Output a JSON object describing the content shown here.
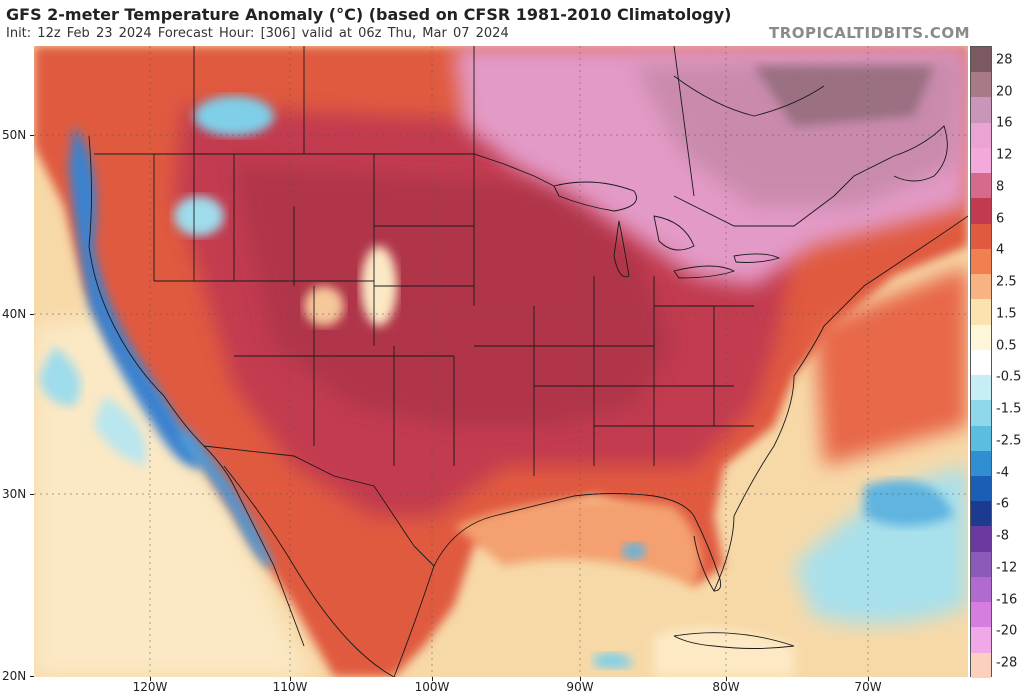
{
  "header": {
    "title": "GFS 2-meter Temperature Anomaly (°C) (based on CFSR 1981-2010 Climatology)",
    "subtitle": "Init: 12z Feb 23 2024   Forecast Hour: [306]   valid at 06z Thu, Mar 07 2024",
    "brand": "TROPICALTIDBITS.COM"
  },
  "axes": {
    "lat_labels": [
      "50N",
      "40N",
      "30N",
      "20N"
    ],
    "lon_labels": [
      "120W",
      "110W",
      "100W",
      "90W",
      "80W",
      "70W"
    ]
  },
  "colorbar": {
    "labels": [
      "28",
      "20",
      "16",
      "12",
      "8",
      "6",
      "4",
      "2.5",
      "1.5",
      "0.5",
      "-0.5",
      "-1.5",
      "-2.5",
      "-4",
      "-6",
      "-8",
      "-12",
      "-16",
      "-20",
      "-28"
    ],
    "colors": [
      "#7a5a60",
      "#a87a86",
      "#c995b8",
      "#e9a3d4",
      "#f4a9dc",
      "#d66a8c",
      "#c23a50",
      "#e05a40",
      "#f08050",
      "#f7b482",
      "#fbe3b0",
      "#fdf6d8",
      "#ffffff",
      "#c8eef5",
      "#8fd8ec",
      "#5bbde0",
      "#2f8fd0",
      "#1a5fb5",
      "#1c3a90",
      "#6a3aa0",
      "#8a5ab8",
      "#b06ad0",
      "#d67ee0",
      "#f0a8e8",
      "#fcd0bc"
    ]
  },
  "legend": {
    "hot_core_color": "#b83040",
    "warm_color": "#e05a40",
    "ocean_color": "#f7d9a8",
    "cool_color": "#7fcfe8",
    "cold_color": "#2a6fc0"
  }
}
